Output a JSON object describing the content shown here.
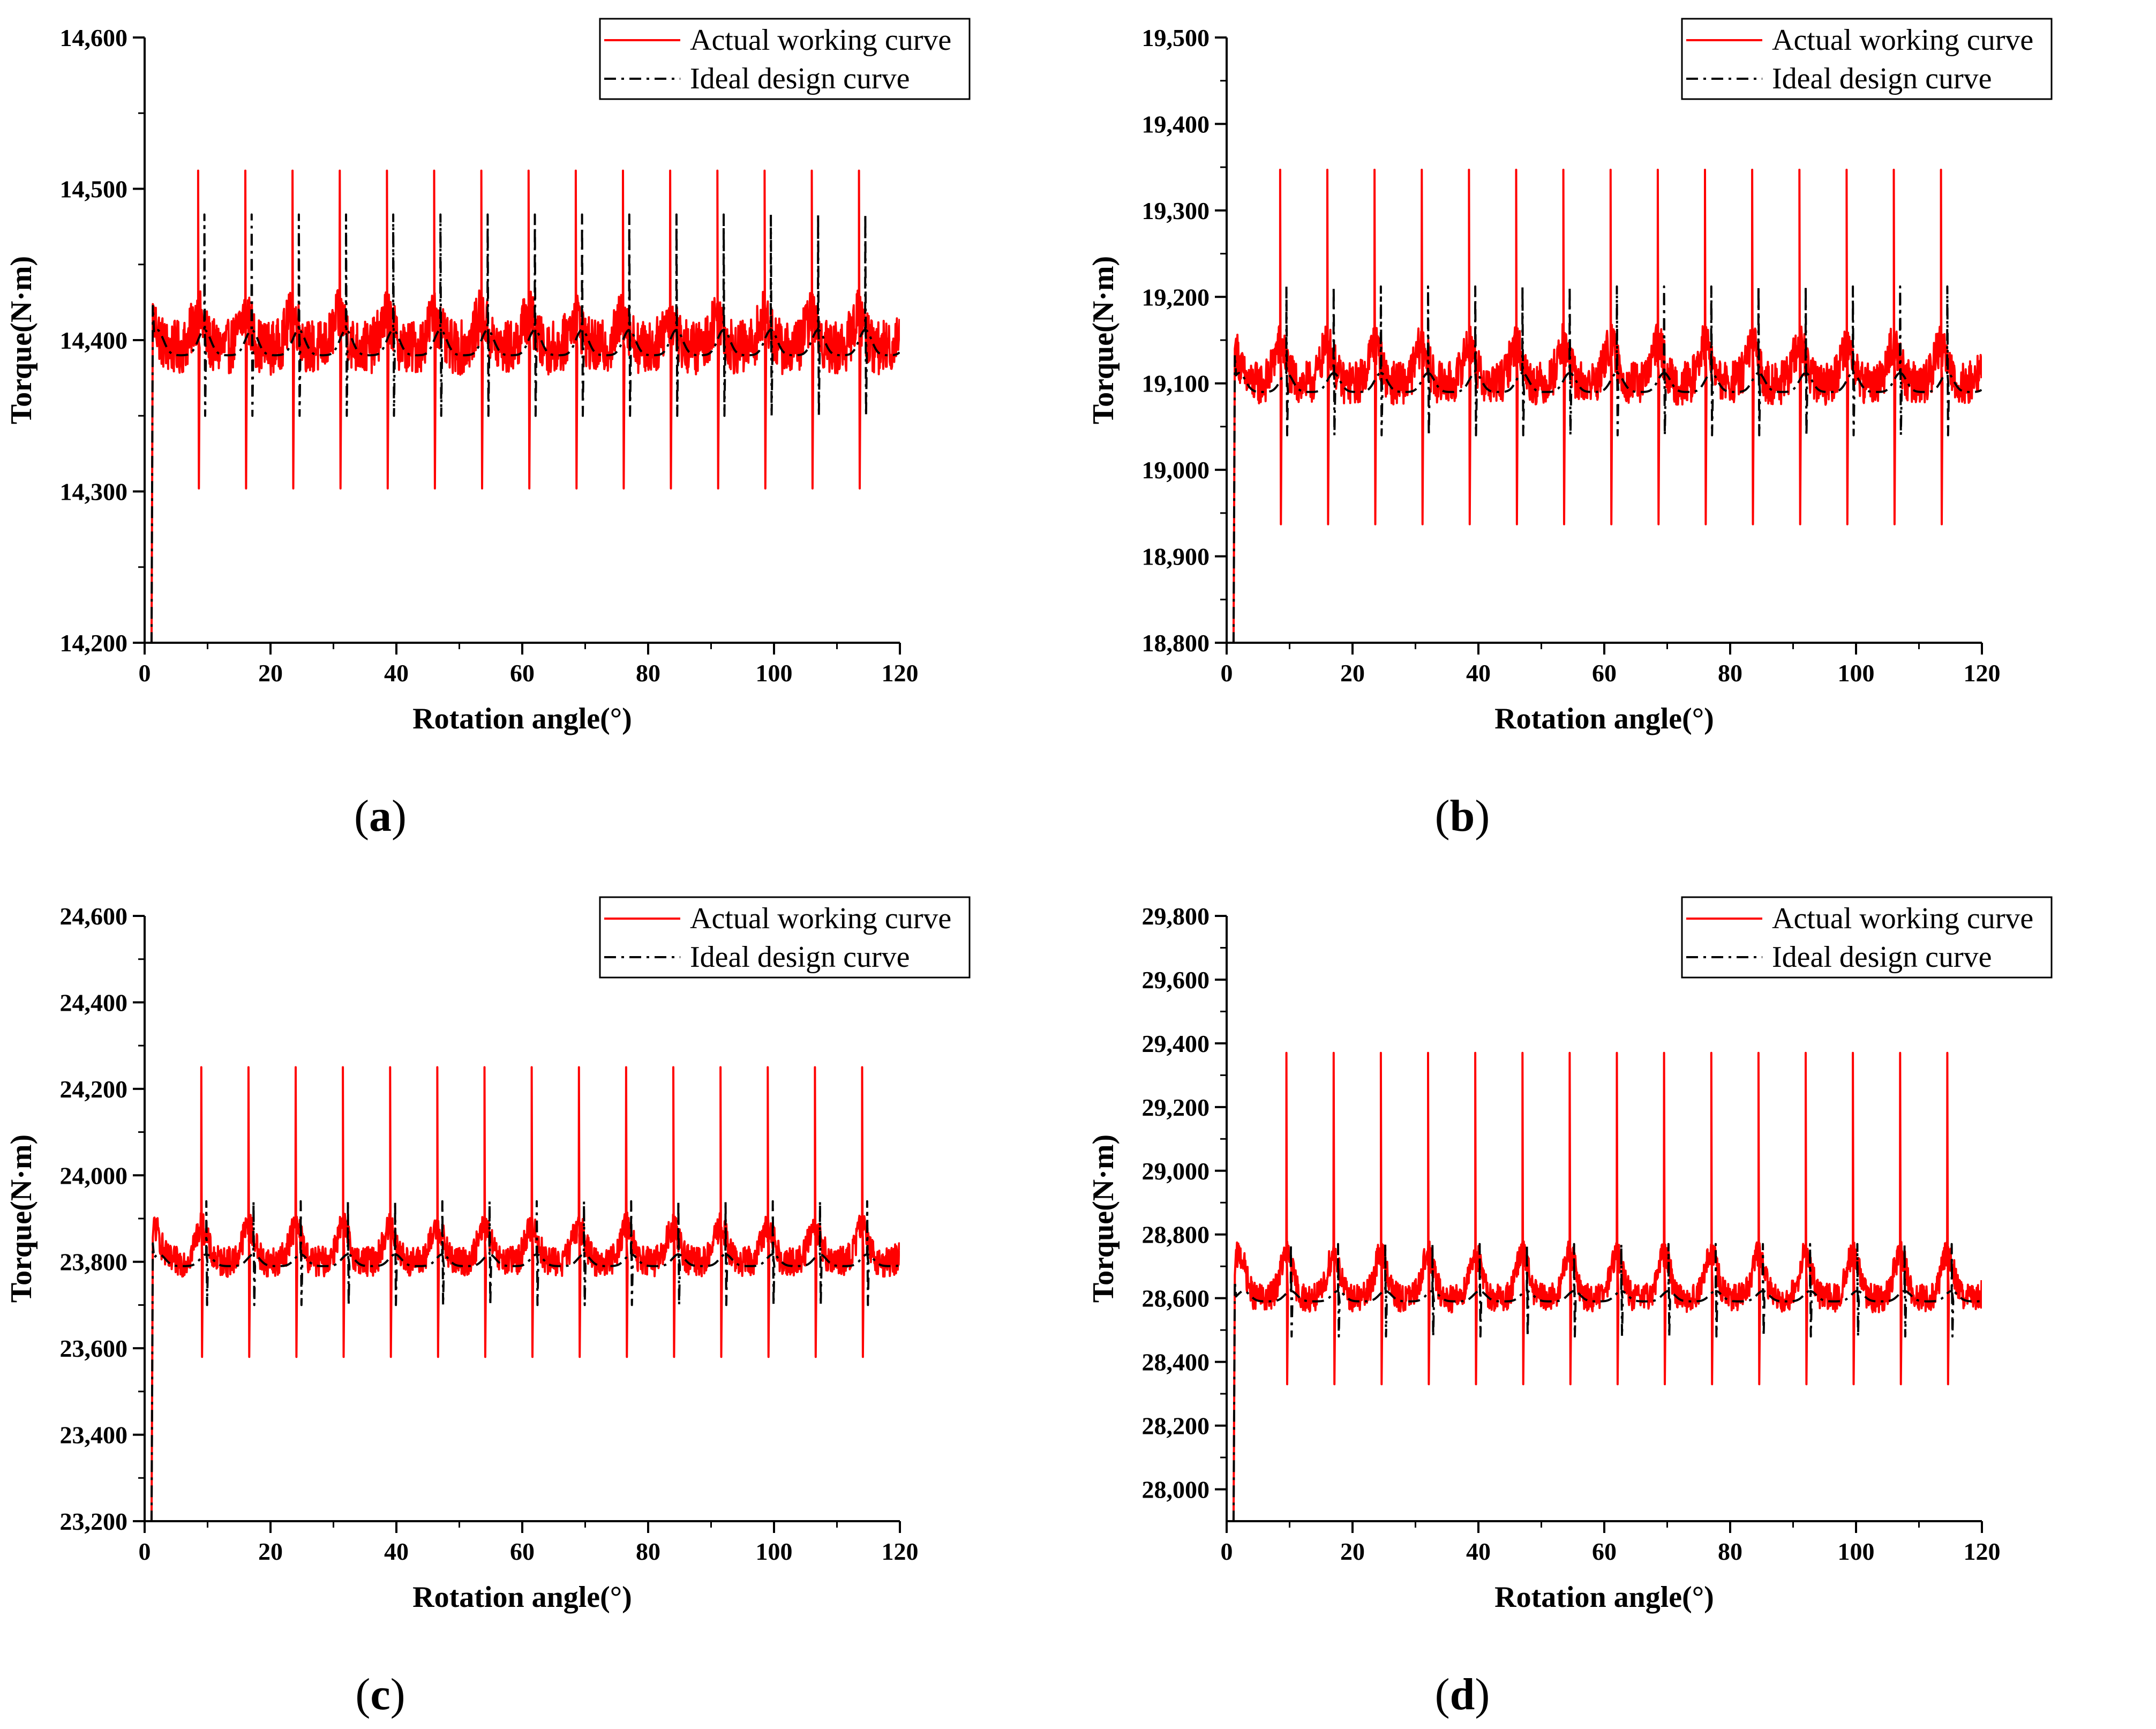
{
  "colors": {
    "actual": "#ff0000",
    "ideal": "#000000",
    "axis": "#000000"
  },
  "chart_data": [
    {
      "panel": "a",
      "type": "line",
      "label_open": "(",
      "label_letter": "a",
      "label_close": ")",
      "xlabel": "Rotation angle(°)",
      "ylabel": "Torque(N·m)",
      "xlim": [
        0,
        120
      ],
      "ylim": [
        14200,
        14600
      ],
      "xticks": [
        0,
        20,
        40,
        60,
        80,
        100,
        120
      ],
      "xtick_labels": [
        "0",
        "20",
        "40",
        "60",
        "80",
        "100",
        "120"
      ],
      "yticks": [
        14200,
        14300,
        14400,
        14500,
        14600
      ],
      "ytick_labels": [
        "14,200",
        "14,300",
        "14,400",
        "14,500",
        "14,600"
      ],
      "legend_position": "top-right",
      "series": [
        {
          "name": "Actual working curve",
          "style": "solid",
          "baseline": 14395,
          "noise": 18,
          "period": 7.5,
          "first_peak": 8.5,
          "peak_high": 14512,
          "peak_low": 14302,
          "start_low": 14200
        },
        {
          "name": "Ideal design curve",
          "style": "dash-dot",
          "baseline": 14390,
          "noise": 0,
          "period": 7.5,
          "first_peak": 9.5,
          "peak_high": 14483,
          "peak_low": 14350,
          "start_low": 14200
        }
      ]
    },
    {
      "panel": "b",
      "type": "line",
      "label_open": "(",
      "label_letter": "b",
      "label_close": ")",
      "xlabel": "Rotation angle(°)",
      "ylabel": "Torque(N·m)",
      "xlim": [
        0,
        120
      ],
      "ylim": [
        18800,
        19500
      ],
      "xticks": [
        0,
        20,
        40,
        60,
        80,
        100,
        120
      ],
      "xtick_labels": [
        "0",
        "20",
        "40",
        "60",
        "80",
        "100",
        "120"
      ],
      "yticks": [
        18800,
        18900,
        19000,
        19100,
        19200,
        19300,
        19400,
        19500
      ],
      "ytick_labels": [
        "18,800",
        "18,900",
        "19,000",
        "19,100",
        "19,200",
        "19,300",
        "19,400",
        "19,500"
      ],
      "legend_position": "top-right",
      "series": [
        {
          "name": "Actual working curve",
          "style": "solid",
          "baseline": 19100,
          "noise": 25,
          "period": 7.5,
          "first_peak": 8.5,
          "peak_high": 19347,
          "peak_low": 18937,
          "start_low": 18800
        },
        {
          "name": "Ideal design curve",
          "style": "dash-dot",
          "baseline": 19090,
          "noise": 0,
          "period": 7.5,
          "first_peak": 9.5,
          "peak_high": 19212,
          "peak_low": 19040,
          "start_low": 18800
        }
      ]
    },
    {
      "panel": "c",
      "type": "line",
      "label_open": "(",
      "label_letter": "c",
      "label_close": ")",
      "xlabel": "Rotation angle(°)",
      "ylabel": "Torque(N·m)",
      "xlim": [
        0,
        120
      ],
      "ylim": [
        23200,
        24600
      ],
      "xticks": [
        0,
        20,
        40,
        60,
        80,
        100,
        120
      ],
      "xtick_labels": [
        "0",
        "20",
        "40",
        "60",
        "80",
        "100",
        "120"
      ],
      "yticks": [
        23200,
        23400,
        23600,
        23800,
        24000,
        24200,
        24400,
        24600
      ],
      "ytick_labels": [
        "23,200",
        "23,400",
        "23,600",
        "23,800",
        "24,000",
        "24,200",
        "24,400",
        "24,600"
      ],
      "legend_position": "top-right",
      "series": [
        {
          "name": "Actual working curve",
          "style": "solid",
          "baseline": 23800,
          "noise": 35,
          "period": 7.5,
          "first_peak": 9,
          "peak_high": 24250,
          "peak_low": 23580,
          "start_low": 23200
        },
        {
          "name": "Ideal design curve",
          "style": "dash-dot",
          "baseline": 23790,
          "noise": 0,
          "period": 7.5,
          "first_peak": 9.8,
          "peak_high": 23940,
          "peak_low": 23700,
          "start_low": 23200
        }
      ]
    },
    {
      "panel": "d",
      "type": "line",
      "label_open": "(",
      "label_letter": "d",
      "label_close": ")",
      "xlabel": "Rotation angle(°)",
      "ylabel": "Torque(N·m)",
      "xlim": [
        0,
        120
      ],
      "ylim": [
        27900,
        29800
      ],
      "xticks": [
        0,
        20,
        40,
        60,
        80,
        100,
        120
      ],
      "xtick_labels": [
        "0",
        "20",
        "40",
        "60",
        "80",
        "100",
        "120"
      ],
      "yticks": [
        28000,
        28200,
        28400,
        28600,
        28800,
        29000,
        29200,
        29400,
        29600,
        29800
      ],
      "ytick_labels": [
        "28,000",
        "28,200",
        "28,400",
        "28,600",
        "28,800",
        "29,000",
        "29,200",
        "29,400",
        "29,600",
        "29,800"
      ],
      "legend_position": "top-right",
      "series": [
        {
          "name": "Actual working curve",
          "style": "solid",
          "baseline": 28600,
          "noise": 45,
          "period": 7.5,
          "first_peak": 9.5,
          "peak_high": 29370,
          "peak_low": 28330,
          "start_low": 27900
        },
        {
          "name": "Ideal design curve",
          "style": "dash-dot",
          "baseline": 28590,
          "noise": 0,
          "period": 7.5,
          "first_peak": 10.2,
          "peak_high": 28770,
          "peak_low": 28480,
          "start_low": 27900
        }
      ]
    }
  ]
}
